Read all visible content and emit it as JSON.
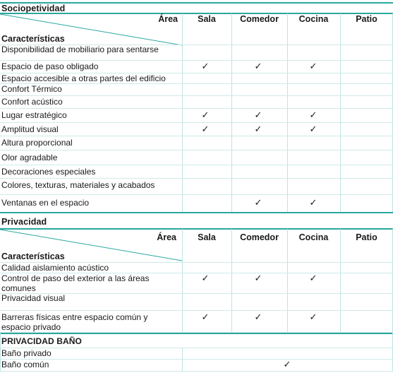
{
  "columns": {
    "area": "Área",
    "caracteristicas": "Características",
    "sala": "Sala",
    "comedor": "Comedor",
    "cocina": "Cocina",
    "patio": "Patio"
  },
  "sociopetividad": {
    "title": "Sociopetividad",
    "rows": [
      {
        "label": "Disponibilidad de mobiliario para sentarse",
        "sala": "",
        "comedor": "",
        "cocina": "",
        "patio": ""
      },
      {
        "label": "Espacio de paso obligado",
        "sala": "✓",
        "comedor": "✓",
        "cocina": "✓",
        "patio": ""
      },
      {
        "label": "Espacio accesible a otras partes del edificio",
        "sala": "",
        "comedor": "",
        "cocina": "",
        "patio": ""
      },
      {
        "label": "Confort Térmico",
        "sala": "",
        "comedor": "",
        "cocina": "",
        "patio": ""
      },
      {
        "label": "Confort acústico",
        "sala": "",
        "comedor": "",
        "cocina": "",
        "patio": ""
      },
      {
        "label": "Lugar estratégico",
        "sala": "✓",
        "comedor": "✓",
        "cocina": "✓",
        "patio": ""
      },
      {
        "label": "Amplitud visual",
        "sala": "✓",
        "comedor": "✓",
        "cocina": "✓",
        "patio": ""
      },
      {
        "label": "Altura proporcional",
        "sala": "",
        "comedor": "",
        "cocina": "",
        "patio": ""
      },
      {
        "label": "Olor agradable",
        "sala": "",
        "comedor": "",
        "cocina": "",
        "patio": ""
      },
      {
        "label": "Decoraciones especiales",
        "sala": "",
        "comedor": "",
        "cocina": "",
        "patio": ""
      },
      {
        "label": "Colores, texturas, materiales y acabados",
        "sala": "",
        "comedor": "",
        "cocina": "",
        "patio": ""
      },
      {
        "label": "Ventanas en el espacio",
        "sala": "",
        "comedor": "✓",
        "cocina": "✓",
        "patio": ""
      }
    ]
  },
  "privacidad": {
    "title": "Privacidad",
    "rows": [
      {
        "label": "Calidad aislamiento acústico",
        "sala": "",
        "comedor": "",
        "cocina": "",
        "patio": ""
      },
      {
        "label": "Control de paso del exterior a las áreas comunes",
        "sala": "✓",
        "comedor": "✓",
        "cocina": "✓",
        "patio": ""
      },
      {
        "label": "Privacidad visual",
        "sala": "",
        "comedor": "",
        "cocina": "",
        "patio": ""
      },
      {
        "label": "Barreras físicas entre espacio común y espacio privado",
        "sala": "✓",
        "comedor": "✓",
        "cocina": "✓",
        "patio": ""
      }
    ]
  },
  "privacidad_bano": {
    "title": "PRIVACIDAD BAÑO",
    "rows": [
      {
        "label": "Baño privado",
        "value": ""
      },
      {
        "label": "Baño común",
        "value": "✓"
      }
    ]
  }
}
